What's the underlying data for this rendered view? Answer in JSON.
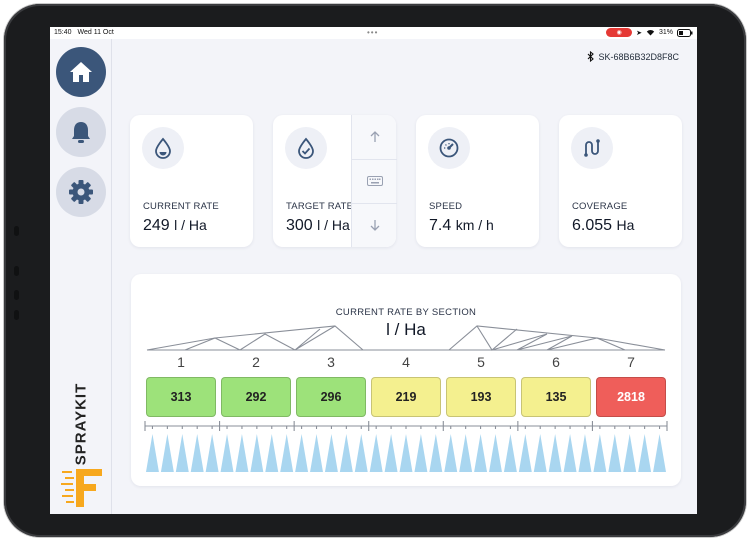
{
  "status_bar": {
    "time": "15:40",
    "date": "Wed 11 Oct",
    "battery": "31%"
  },
  "device": {
    "id": "SK-68B6B32D8F8C"
  },
  "brand": {
    "name": "SPRAYKIT"
  },
  "nav": [
    {
      "name": "home",
      "icon": "home-icon",
      "active": true
    },
    {
      "name": "alerts",
      "icon": "bell-icon",
      "active": false
    },
    {
      "name": "settings",
      "icon": "gear-icon",
      "active": false
    }
  ],
  "cards": {
    "current_rate": {
      "label": "CURRENT RATE",
      "value": "249",
      "unit": "l / Ha",
      "icon": "droplet-icon"
    },
    "target_rate": {
      "label": "TARGET RATE",
      "value": "300",
      "unit": "l / Ha",
      "icon": "droplet-check-icon"
    },
    "speed": {
      "label": "SPEED",
      "value": "7.4",
      "unit": "km / h",
      "icon": "speedometer-icon"
    },
    "coverage": {
      "label": "COVERAGE",
      "value": "6.055",
      "unit": "Ha",
      "icon": "route-icon"
    }
  },
  "stepper": {
    "up_icon": "arrow-up-icon",
    "keyboard_icon": "keyboard-icon",
    "down_icon": "arrow-down-icon"
  },
  "sections": {
    "title": "CURRENT RATE BY SECTION",
    "unit": "l / Ha",
    "items": [
      {
        "number": "1",
        "value": "313",
        "color": "#9de27a",
        "status": "ok"
      },
      {
        "number": "2",
        "value": "292",
        "color": "#9de27a",
        "status": "ok"
      },
      {
        "number": "3",
        "value": "296",
        "color": "#9de27a",
        "status": "ok"
      },
      {
        "number": "4",
        "value": "219",
        "color": "#f4f08f",
        "status": "low"
      },
      {
        "number": "5",
        "value": "193",
        "color": "#f4f08f",
        "status": "low"
      },
      {
        "number": "6",
        "value": "135",
        "color": "#f4f08f",
        "status": "low"
      },
      {
        "number": "7",
        "value": "2818",
        "color": "#ef5e5a",
        "status": "high"
      }
    ]
  },
  "colors": {
    "accent": "#3b567a",
    "nav_inactive": "#d7dbe6",
    "ok": "#9de27a",
    "low": "#f4f08f",
    "high": "#ef5e5a",
    "nozzle": "#a9d6f0"
  }
}
